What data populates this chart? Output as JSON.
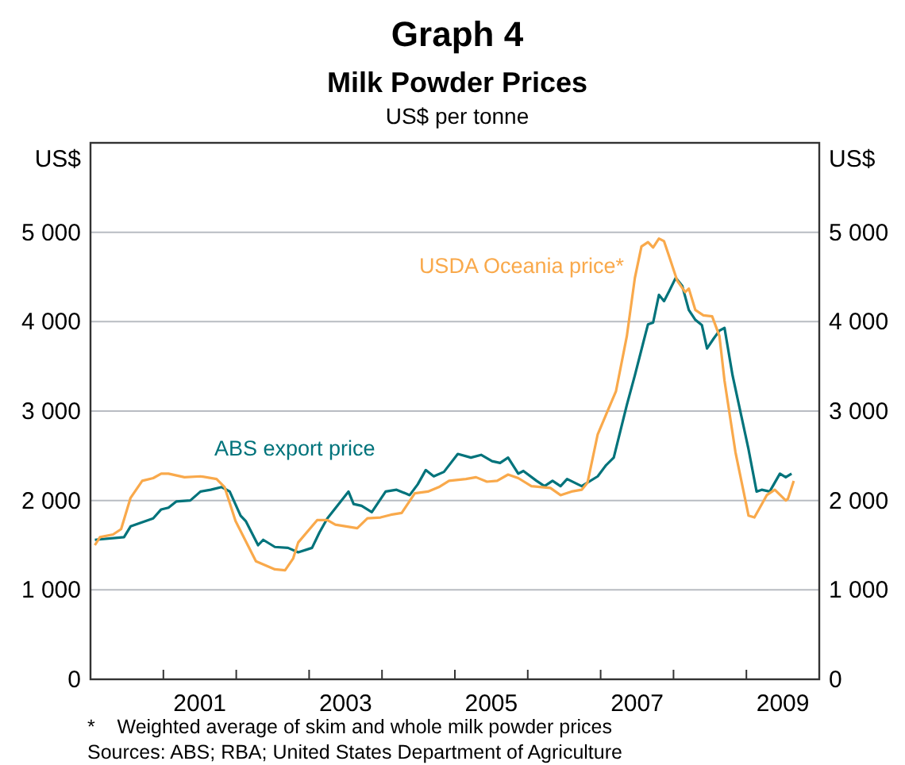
{
  "chart_data": {
    "type": "line",
    "title": "Graph 4",
    "subtitle": "Milk Powder Prices",
    "ylabel": "US$",
    "y2label": "US$",
    "annotations": [
      "US$ per tonne",
      "*    Weighted average of skim and whole milk powder prices",
      "Sources: ABS; RBA; United States Department of Agriculture"
    ],
    "xlim": [
      2000,
      2010
    ],
    "xticks": [
      {
        "value": 2001,
        "label": null
      },
      {
        "value": 2002,
        "label": null
      },
      {
        "value": 2003,
        "label": null
      },
      {
        "value": 2004,
        "label": null
      },
      {
        "value": 2005,
        "label": null
      },
      {
        "value": 2006,
        "label": null
      },
      {
        "value": 2007,
        "label": null
      },
      {
        "value": 2008,
        "label": null
      },
      {
        "value": 2009,
        "label": null
      },
      {
        "value": 2001.5,
        "label": "2001"
      },
      {
        "value": 2003.5,
        "label": "2003"
      },
      {
        "value": 2005.5,
        "label": "2005"
      },
      {
        "value": 2007.5,
        "label": "2007"
      },
      {
        "value": 2009.5,
        "label": "2009"
      }
    ],
    "ylim": [
      0,
      6000
    ],
    "yticks": [
      0,
      {
        "value": 1000,
        "label": "1 000"
      },
      {
        "value": 2000,
        "label": "2 000"
      },
      {
        "value": 3000,
        "label": "3 000"
      },
      {
        "value": 4000,
        "label": "4 000"
      },
      {
        "value": 5000,
        "label": "5 000"
      }
    ],
    "y2lim": [
      0,
      6000
    ],
    "y2ticks": [
      0,
      {
        "value": 1000,
        "label": "1 000"
      },
      {
        "value": 2000,
        "label": "2 000"
      },
      {
        "value": 3000,
        "label": "3 000"
      },
      {
        "value": 4000,
        "label": "4 000"
      },
      {
        "value": 5000,
        "label": "5 000"
      }
    ],
    "grid": "y",
    "legend": false,
    "marker": "none",
    "line_style": "solid",
    "series": [
      {
        "name": "ABS export price",
        "color": "#00737b",
        "x": [
          2000.06,
          2000.46,
          2000.55,
          2000.86,
          2000.97,
          2001.07,
          2001.18,
          2001.37,
          2001.51,
          2001.65,
          2001.8,
          2001.91,
          2002.06,
          2002.13,
          2002.3,
          2002.37,
          2002.53,
          2002.71,
          2002.85,
          2003.04,
          2003.14,
          2003.25,
          2003.54,
          2003.61,
          2003.72,
          2003.86,
          2004.05,
          2004.2,
          2004.38,
          2004.49,
          2004.6,
          2004.71,
          2004.85,
          2005.04,
          2005.22,
          2005.36,
          2005.51,
          2005.62,
          2005.73,
          2005.87,
          2005.94,
          2006.12,
          2006.23,
          2006.34,
          2006.45,
          2006.54,
          2006.74,
          2006.96,
          2007.07,
          2007.18,
          2007.36,
          2007.47,
          2007.58,
          2007.65,
          2007.72,
          2007.8,
          2007.87,
          2007.94,
          2008.03,
          2008.12,
          2008.21,
          2008.3,
          2008.39,
          2008.46,
          2008.55,
          2008.63,
          2008.7,
          2008.81,
          2009.03,
          2009.14,
          2009.21,
          2009.32,
          2009.46,
          2009.54,
          2009.62
        ],
        "values": [
          1560,
          1590,
          1710,
          1800,
          1900,
          1920,
          1990,
          2000,
          2100,
          2120,
          2150,
          2100,
          1830,
          1770,
          1500,
          1560,
          1480,
          1470,
          1420,
          1470,
          1640,
          1800,
          2100,
          1960,
          1940,
          1870,
          2100,
          2120,
          2060,
          2180,
          2340,
          2270,
          2320,
          2520,
          2480,
          2510,
          2440,
          2420,
          2480,
          2300,
          2330,
          2220,
          2160,
          2220,
          2160,
          2240,
          2160,
          2270,
          2390,
          2480,
          3070,
          3400,
          3750,
          3970,
          3990,
          4300,
          4230,
          4340,
          4490,
          4400,
          4130,
          4020,
          3960,
          3700,
          3810,
          3900,
          3930,
          3400,
          2570,
          2100,
          2120,
          2100,
          2300,
          2260,
          2300
        ]
      },
      {
        "name": "USDA Oceania price*",
        "color": "#f9a94b",
        "x": [
          2000.06,
          2000.13,
          2000.31,
          2000.42,
          2000.55,
          2000.71,
          2000.86,
          2000.97,
          2001.07,
          2001.29,
          2001.51,
          2001.73,
          2001.84,
          2001.99,
          2002.27,
          2002.53,
          2002.67,
          2002.78,
          2002.85,
          2003.11,
          2003.25,
          2003.36,
          2003.66,
          2003.8,
          2003.98,
          2004.12,
          2004.27,
          2004.45,
          2004.63,
          2004.78,
          2004.92,
          2005.15,
          2005.29,
          2005.44,
          2005.58,
          2005.73,
          2005.87,
          2006.05,
          2006.31,
          2006.45,
          2006.6,
          2006.74,
          2006.82,
          2006.96,
          2007.1,
          2007.21,
          2007.36,
          2007.47,
          2007.56,
          2007.65,
          2007.72,
          2007.8,
          2007.87,
          2007.94,
          2008.05,
          2008.16,
          2008.21,
          2008.3,
          2008.41,
          2008.53,
          2008.63,
          2008.7,
          2008.85,
          2009.03,
          2009.11,
          2009.28,
          2009.39,
          2009.54,
          2009.57,
          2009.65
        ],
        "values": [
          1500,
          1590,
          1620,
          1680,
          2030,
          2220,
          2250,
          2300,
          2300,
          2260,
          2270,
          2240,
          2150,
          1770,
          1320,
          1230,
          1220,
          1350,
          1530,
          1780,
          1780,
          1730,
          1690,
          1800,
          1810,
          1840,
          1860,
          2080,
          2100,
          2150,
          2220,
          2240,
          2260,
          2210,
          2220,
          2290,
          2250,
          2160,
          2140,
          2060,
          2100,
          2120,
          2200,
          2740,
          3010,
          3220,
          3840,
          4490,
          4840,
          4890,
          4830,
          4930,
          4900,
          4730,
          4460,
          4330,
          4370,
          4130,
          4070,
          4060,
          3840,
          3340,
          2540,
          1830,
          1810,
          2060,
          2120,
          2000,
          2020,
          2220
        ]
      }
    ]
  }
}
